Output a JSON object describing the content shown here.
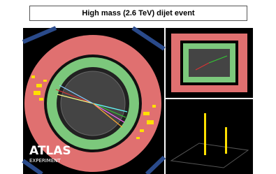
{
  "header": {
    "title": "High mass (2.6 TeV) dijet event"
  },
  "display": {
    "logo": "ATLAS",
    "logo_subtitle": "EXPERIMENT"
  }
}
